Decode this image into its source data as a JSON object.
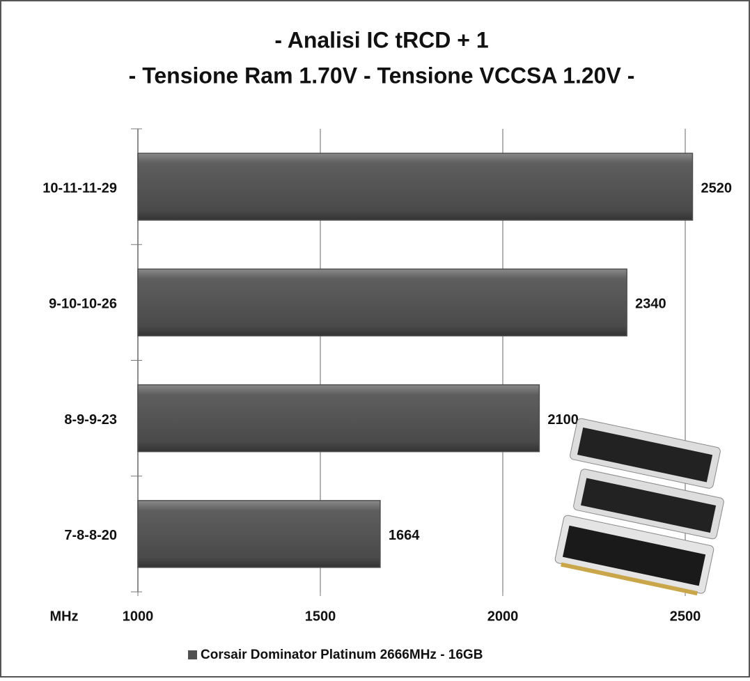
{
  "chart_data": {
    "type": "hbar",
    "title": "- Analisi IC  tRCD + 1",
    "subtitle": "- Tensione Ram 1.70V - Tensione VCCSA 1.20V -",
    "x_label": "MHz",
    "categories": [
      "10-11-11-29",
      "9-10-10-26",
      "8-9-9-23",
      "7-8-8-20"
    ],
    "series": [
      {
        "name": "Corsair Dominator Platinum 2666MHz - 16GB",
        "color": "#505050",
        "values": [
          2520,
          2340,
          2100,
          1664
        ]
      }
    ],
    "xlim": [
      1000,
      2600
    ],
    "xticks": [
      1000,
      1500,
      2000,
      2500
    ],
    "grid": true,
    "legend": "bottom"
  }
}
